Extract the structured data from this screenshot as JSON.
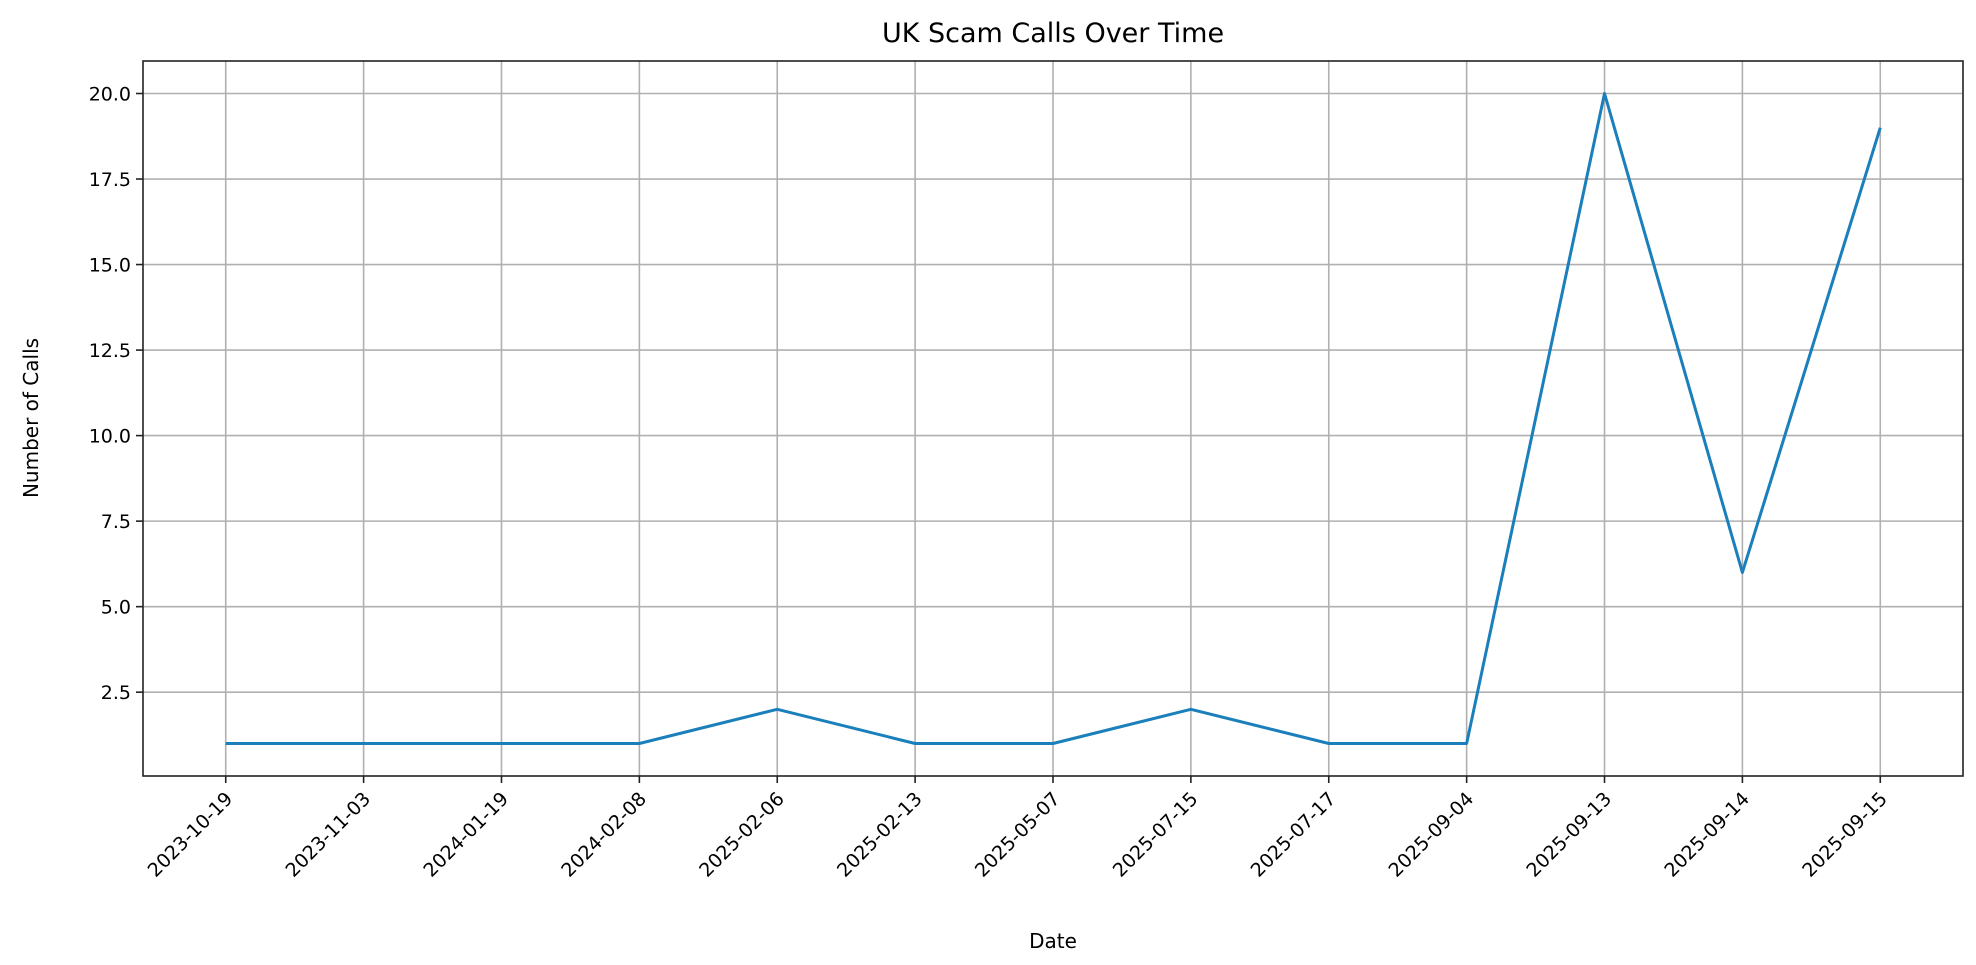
{
  "chart_data": {
    "type": "line",
    "title": "UK Scam Calls Over Time",
    "xlabel": "Date",
    "ylabel": "Number of Calls",
    "categories": [
      "2023-10-19",
      "2023-11-03",
      "2024-01-19",
      "2024-02-08",
      "2025-02-06",
      "2025-02-13",
      "2025-05-07",
      "2025-07-15",
      "2025-07-17",
      "2025-09-04",
      "2025-09-13",
      "2025-09-14",
      "2025-09-15"
    ],
    "series": [
      {
        "values": [
          1,
          1,
          1,
          1,
          2,
          1,
          1,
          2,
          1,
          1,
          20,
          6,
          19
        ],
        "color": "#1a7fba"
      }
    ],
    "ylim": [
      0.05,
      20.95
    ],
    "yticks": [
      "2.5",
      "5.0",
      "7.5",
      "10.0",
      "12.5",
      "15.0",
      "17.5",
      "20.0"
    ],
    "grid": true,
    "legend": "none"
  }
}
